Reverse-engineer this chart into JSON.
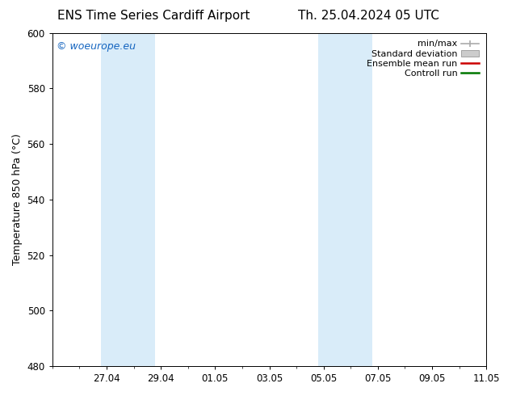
{
  "title_left": "ENS Time Series Cardiff Airport",
  "title_right": "Th. 25.04.2024 05 UTC",
  "ylabel": "Temperature 850 hPa (°C)",
  "ylim": [
    480,
    600
  ],
  "yticks": [
    480,
    500,
    520,
    540,
    560,
    580,
    600
  ],
  "total_days": 16.0,
  "xtick_labels": [
    "27.04",
    "29.04",
    "01.05",
    "03.05",
    "05.05",
    "07.05",
    "09.05",
    "11.05"
  ],
  "xtick_positions_days": [
    2,
    4,
    6,
    8,
    10,
    12,
    14,
    16
  ],
  "background_color": "#ffffff",
  "plot_bg_color": "#ffffff",
  "shaded_bands": [
    {
      "x_start_day": 1.79,
      "x_end_day": 3.79,
      "color": "#d9ecf9"
    },
    {
      "x_start_day": 9.79,
      "x_end_day": 11.79,
      "color": "#d9ecf9"
    }
  ],
  "watermark_text": "© woeurope.eu",
  "watermark_color": "#1565c0",
  "legend_entries": [
    {
      "label": "min/max",
      "color": "#aaaaaa",
      "type": "minmax"
    },
    {
      "label": "Standard deviation",
      "color": "#cccccc",
      "type": "stddev"
    },
    {
      "label": "Ensemble mean run",
      "color": "#cc0000",
      "type": "line"
    },
    {
      "label": "Controll run",
      "color": "#007700",
      "type": "line"
    }
  ],
  "font_family": "DejaVu Sans",
  "title_fontsize": 11,
  "tick_fontsize": 8.5,
  "legend_fontsize": 8,
  "watermark_fontsize": 9,
  "ylabel_fontsize": 9,
  "grid_color": "#dddddd",
  "axis_color": "#000000",
  "minor_tick_interval": 0.5
}
